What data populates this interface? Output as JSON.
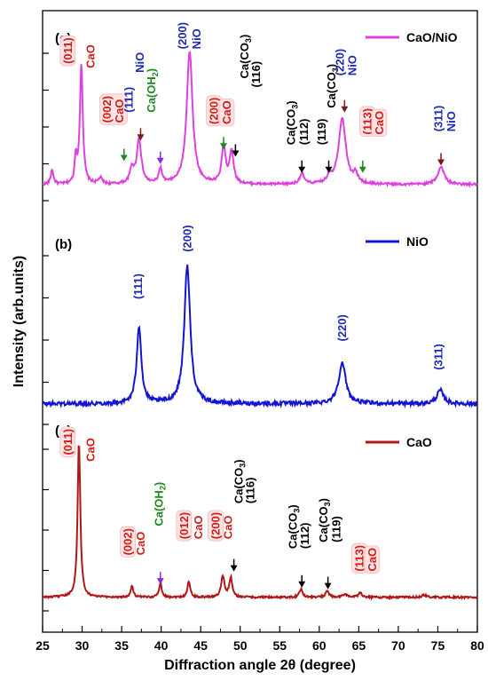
{
  "chart_data": {
    "type": "line",
    "title": "",
    "xlabel": "Diffraction angle 2θ (degree)",
    "ylabel": "Intensity (arb.units)",
    "xlim": [
      25,
      80
    ],
    "xticks": [
      25,
      30,
      35,
      40,
      45,
      50,
      55,
      60,
      65,
      70,
      75,
      80
    ],
    "grid": false,
    "legend_position": "right of each panel",
    "panels": [
      {
        "id": "c",
        "panel_label": "(c)",
        "series_name": "CaO/NiO",
        "color": "#e040e0",
        "baseline": 0.06,
        "noise": 0.008,
        "peaks": [
          {
            "x": 26.2,
            "h": 0.1,
            "w": 0.2
          },
          {
            "x": 29.2,
            "h": 0.18,
            "w": 0.15
          },
          {
            "x": 29.9,
            "h": 0.82,
            "w": 0.22
          },
          {
            "x": 32.3,
            "h": 0.04,
            "w": 0.3
          },
          {
            "x": 36.3,
            "h": 0.1,
            "w": 0.3
          },
          {
            "x": 37.2,
            "h": 0.3,
            "w": 0.35
          },
          {
            "x": 39.9,
            "h": 0.1,
            "w": 0.25
          },
          {
            "x": 43.6,
            "h": 0.9,
            "w": 0.45
          },
          {
            "x": 47.9,
            "h": 0.25,
            "w": 0.3
          },
          {
            "x": 48.9,
            "h": 0.22,
            "w": 0.3
          },
          {
            "x": 57.8,
            "h": 0.07,
            "w": 0.35
          },
          {
            "x": 61.3,
            "h": 0.05,
            "w": 0.3
          },
          {
            "x": 62.9,
            "h": 0.45,
            "w": 0.55
          },
          {
            "x": 64.6,
            "h": 0.06,
            "w": 0.3
          },
          {
            "x": 75.4,
            "h": 0.12,
            "w": 0.5
          }
        ],
        "annotations": [
          {
            "x": 28.3,
            "lines": [
              "(011)"
            ],
            "color": "#cc1f1a",
            "boxed": true,
            "ry": 0.88
          },
          {
            "x": 31.2,
            "lines": [
              "CaO"
            ],
            "color": "#cc1f1a",
            "boxed": false,
            "ry": 0.85
          },
          {
            "x": 33.3,
            "lines": [
              "(002)",
              "CaO"
            ],
            "color": "#cc1f1a",
            "boxed": true,
            "ry": 0.48
          },
          {
            "x": 36.0,
            "lines": [
              "(111)"
            ],
            "color": "#1f2bb0",
            "boxed": false,
            "ry": 0.55
          },
          {
            "x": 37.4,
            "lines": [
              "NiO"
            ],
            "color": "#1f2bb0",
            "boxed": false,
            "ry": 0.82
          },
          {
            "x": 38.9,
            "lines": [
              "Ca(OH",
              "2",
              ")"
            ],
            "color": "#1e8a1e",
            "boxed": false,
            "ry": 0.55
          },
          {
            "x": 42.8,
            "lines": [
              "(200)"
            ],
            "color": "#1f2bb0",
            "boxed": false,
            "ry": 0.98
          },
          {
            "x": 44.6,
            "lines": [
              "NiO"
            ],
            "color": "#1f2bb0",
            "boxed": false,
            "ry": 0.98
          },
          {
            "x": 46.8,
            "lines": [
              "(200)"
            ],
            "color": "#cc1f1a",
            "boxed": true,
            "ry": 0.47
          },
          {
            "x": 48.4,
            "lines": [
              "CaO"
            ],
            "color": "#cc1f1a",
            "boxed": true,
            "ry": 0.47
          },
          {
            "x": 50.7,
            "lines": [
              "Ca(CO",
              "3",
              ")"
            ],
            "color": "#000000",
            "boxed": false,
            "ry": 0.78
          },
          {
            "x": 52.1,
            "lines": [
              "(116)"
            ],
            "color": "#000000",
            "boxed": false,
            "ry": 0.72
          },
          {
            "x": 56.6,
            "lines": [
              "Ca(CO",
              "3",
              ")"
            ],
            "color": "#000000",
            "boxed": false,
            "ry": 0.33
          },
          {
            "x": 58.2,
            "lines": [
              "(112)"
            ],
            "color": "#000000",
            "boxed": false,
            "ry": 0.33
          },
          {
            "x": 60.4,
            "lines": [
              "(119)"
            ],
            "color": "#000000",
            "boxed": false,
            "ry": 0.33
          },
          {
            "x": 61.7,
            "lines": [
              "Ca(CO",
              "3",
              ")"
            ],
            "color": "#000000",
            "boxed": false,
            "ry": 0.58
          },
          {
            "x": 62.7,
            "lines": [
              "(220)"
            ],
            "color": "#1f2bb0",
            "boxed": false,
            "ry": 0.8
          },
          {
            "x": 64.3,
            "lines": [
              "NiO"
            ],
            "color": "#1f2bb0",
            "boxed": false,
            "ry": 0.8
          },
          {
            "x": 66.2,
            "lines": [
              "(113)"
            ],
            "color": "#cc1f1a",
            "boxed": true,
            "ry": 0.4
          },
          {
            "x": 67.7,
            "lines": [
              "CaO"
            ],
            "color": "#cc1f1a",
            "boxed": true,
            "ry": 0.4
          },
          {
            "x": 75.2,
            "lines": [
              "(311)"
            ],
            "color": "#1f2bb0",
            "boxed": false,
            "ry": 0.42
          },
          {
            "x": 76.8,
            "lines": [
              "NiO"
            ],
            "color": "#1f2bb0",
            "boxed": false,
            "ry": 0.42
          }
        ],
        "markers": [
          {
            "x": 35.3,
            "color": "#1e8a1e",
            "kind": "tri",
            "ry": 0.22
          },
          {
            "x": 37.4,
            "color": "#7a1a1a",
            "kind": "tri",
            "ry": 0.36
          },
          {
            "x": 39.9,
            "color": "#8a2be2",
            "kind": "tri",
            "ry": 0.2
          },
          {
            "x": 47.9,
            "color": "#1e8a1e",
            "kind": "tri",
            "ry": 0.3
          },
          {
            "x": 49.4,
            "color": "#000000",
            "kind": "tri",
            "ry": 0.25
          },
          {
            "x": 57.8,
            "color": "#000000",
            "kind": "tri",
            "ry": 0.14
          },
          {
            "x": 61.2,
            "color": "#000000",
            "kind": "tri",
            "ry": 0.14
          },
          {
            "x": 63.2,
            "color": "#7a1a1a",
            "kind": "tri",
            "ry": 0.55
          },
          {
            "x": 65.5,
            "color": "#1e8a1e",
            "kind": "tri",
            "ry": 0.14
          },
          {
            "x": 75.4,
            "color": "#7a1a1a",
            "kind": "tri",
            "ry": 0.19
          }
        ]
      },
      {
        "id": "b",
        "panel_label": "(b)",
        "series_name": "NiO",
        "color": "#1414d4",
        "baseline": 0.08,
        "noise": 0.012,
        "peaks": [
          {
            "x": 37.2,
            "h": 0.46,
            "w": 0.35
          },
          {
            "x": 43.3,
            "h": 0.82,
            "w": 0.45
          },
          {
            "x": 62.9,
            "h": 0.24,
            "w": 0.55
          },
          {
            "x": 75.3,
            "h": 0.08,
            "w": 0.5
          }
        ],
        "annotations": [
          {
            "x": 37.2,
            "lines": [
              "(111)"
            ],
            "color": "#1f2bb0",
            "boxed": false,
            "ry": 0.7
          },
          {
            "x": 43.4,
            "lines": [
              "(200)"
            ],
            "color": "#1f2bb0",
            "boxed": false,
            "ry": 0.98
          },
          {
            "x": 63.0,
            "lines": [
              "(220)"
            ],
            "color": "#1f2bb0",
            "boxed": false,
            "ry": 0.45
          },
          {
            "x": 75.2,
            "lines": [
              "(311)"
            ],
            "color": "#1f2bb0",
            "boxed": false,
            "ry": 0.28
          }
        ],
        "markers": []
      },
      {
        "id": "a",
        "panel_label": "(a)",
        "series_name": "CaO",
        "color": "#b01818",
        "baseline": 0.04,
        "noise": 0.006,
        "peaks": [
          {
            "x": 29.6,
            "h": 0.97,
            "w": 0.2
          },
          {
            "x": 36.3,
            "h": 0.07,
            "w": 0.2
          },
          {
            "x": 39.9,
            "h": 0.09,
            "w": 0.2
          },
          {
            "x": 43.5,
            "h": 0.1,
            "w": 0.2
          },
          {
            "x": 47.8,
            "h": 0.13,
            "w": 0.25
          },
          {
            "x": 48.8,
            "h": 0.12,
            "w": 0.22
          },
          {
            "x": 57.7,
            "h": 0.05,
            "w": 0.25
          },
          {
            "x": 61.0,
            "h": 0.04,
            "w": 0.25
          },
          {
            "x": 63.3,
            "h": 0.02,
            "w": 0.3
          },
          {
            "x": 65.2,
            "h": 0.03,
            "w": 0.25
          },
          {
            "x": 73.3,
            "h": 0.015,
            "w": 0.3
          }
        ],
        "annotations": [
          {
            "x": 28.3,
            "lines": [
              "(011)"
            ],
            "color": "#cc1f1a",
            "boxed": true,
            "ry": 0.92
          },
          {
            "x": 31.2,
            "lines": [
              "CaO"
            ],
            "color": "#cc1f1a",
            "boxed": false,
            "ry": 0.88
          },
          {
            "x": 35.9,
            "lines": [
              "(002)"
            ],
            "color": "#cc1f1a",
            "boxed": true,
            "ry": 0.3
          },
          {
            "x": 37.5,
            "lines": [
              "CaO"
            ],
            "color": "#cc1f1a",
            "boxed": false,
            "ry": 0.3
          },
          {
            "x": 39.9,
            "lines": [
              "Ca(OH",
              "2",
              ")"
            ],
            "color": "#1e8a1e",
            "boxed": false,
            "ry": 0.48
          },
          {
            "x": 43.0,
            "lines": [
              "(012)"
            ],
            "color": "#cc1f1a",
            "boxed": true,
            "ry": 0.4
          },
          {
            "x": 44.8,
            "lines": [
              "CaO"
            ],
            "color": "#cc1f1a",
            "boxed": false,
            "ry": 0.4
          },
          {
            "x": 47.0,
            "lines": [
              "(200)"
            ],
            "color": "#cc1f1a",
            "boxed": true,
            "ry": 0.4
          },
          {
            "x": 48.6,
            "lines": [
              "CaO"
            ],
            "color": "#cc1f1a",
            "boxed": false,
            "ry": 0.4
          },
          {
            "x": 50.0,
            "lines": [
              "Ca(CO",
              "3",
              ")"
            ],
            "color": "#000000",
            "boxed": false,
            "ry": 0.62
          },
          {
            "x": 51.4,
            "lines": [
              "(116)"
            ],
            "color": "#000000",
            "boxed": false,
            "ry": 0.62
          },
          {
            "x": 56.8,
            "lines": [
              "Ca(CO",
              "3",
              ")"
            ],
            "color": "#000000",
            "boxed": false,
            "ry": 0.34
          },
          {
            "x": 58.3,
            "lines": [
              "(112)"
            ],
            "color": "#000000",
            "boxed": false,
            "ry": 0.34
          },
          {
            "x": 60.7,
            "lines": [
              "Ca(CO",
              "3",
              ")"
            ],
            "color": "#000000",
            "boxed": false,
            "ry": 0.38
          },
          {
            "x": 62.3,
            "lines": [
              "(119)"
            ],
            "color": "#000000",
            "boxed": false,
            "ry": 0.38
          },
          {
            "x": 65.2,
            "lines": [
              "(113)"
            ],
            "color": "#cc1f1a",
            "boxed": true,
            "ry": 0.2
          },
          {
            "x": 66.8,
            "lines": [
              "CaO"
            ],
            "color": "#cc1f1a",
            "boxed": true,
            "ry": 0.2
          }
        ],
        "markers": [
          {
            "x": 39.9,
            "color": "#8a2be2",
            "kind": "tri",
            "ry": 0.12
          },
          {
            "x": 49.2,
            "color": "#000000",
            "kind": "tri",
            "ry": 0.2
          },
          {
            "x": 57.8,
            "color": "#000000",
            "kind": "tri",
            "ry": 0.1
          },
          {
            "x": 61.1,
            "color": "#000000",
            "kind": "tri",
            "ry": 0.09
          }
        ]
      }
    ]
  }
}
